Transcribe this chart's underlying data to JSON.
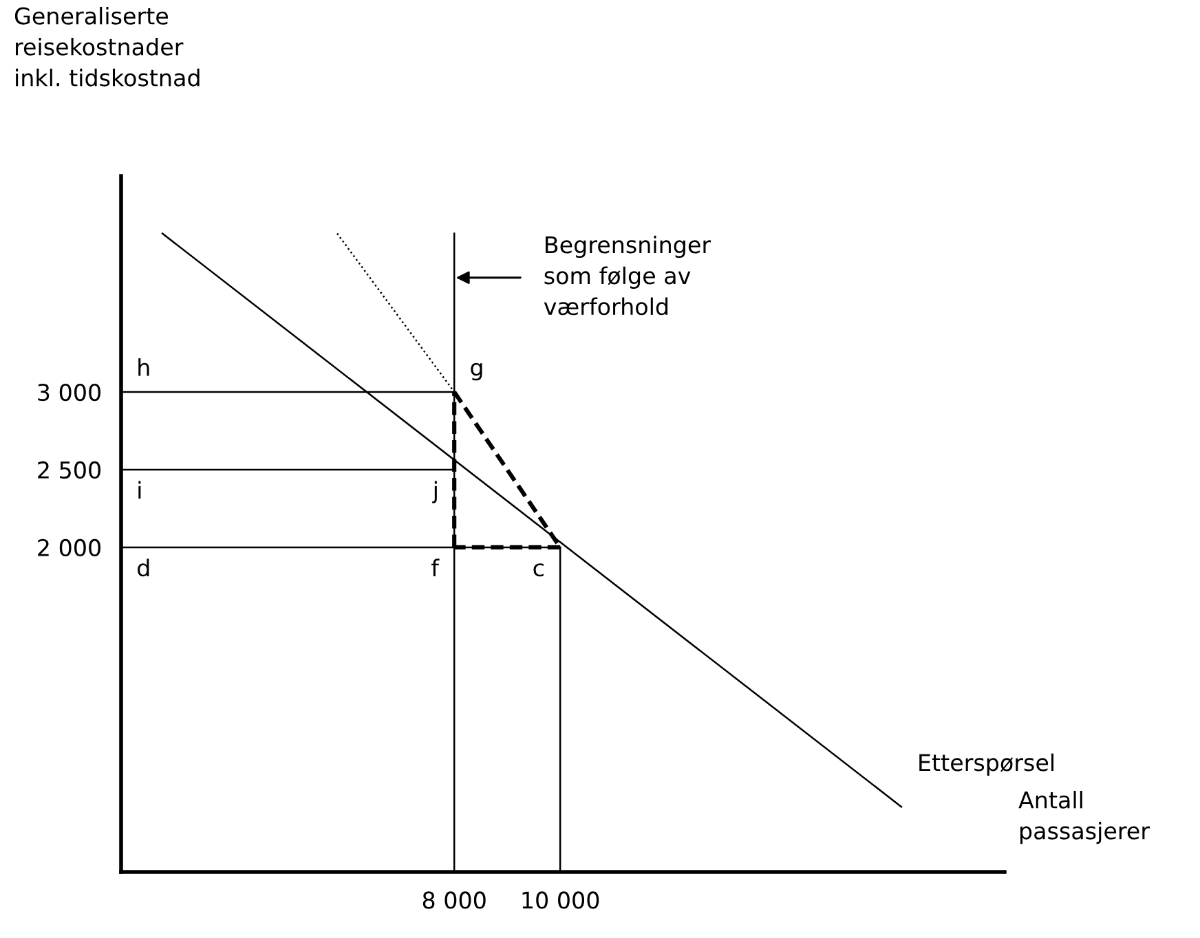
{
  "chart_data": {
    "type": "line",
    "xlabel": "Antall\npassasjerer",
    "ylabel": "Generaliserte\nreisekostnader\ninkl. tidskostnad",
    "xlim": [
      1710,
      18390
    ],
    "ylim": [
      -90,
      4390
    ],
    "xticks": [
      {
        "value": 8000,
        "label": "8 000"
      },
      {
        "value": 10000,
        "label": "10 000"
      }
    ],
    "yticks": [
      {
        "value": 2000,
        "label": "2 000"
      },
      {
        "value": 2500,
        "label": "2 500"
      },
      {
        "value": 3000,
        "label": "3 000"
      }
    ],
    "grid": false,
    "legend": false,
    "marker": "none",
    "series": [
      {
        "name": "Etterspørsel",
        "color": "#000000",
        "x": [
          2490,
          16440
        ],
        "values": [
          4020,
          330
        ],
        "line_style": "solid"
      },
      {
        "color": "#000000",
        "x": [
          5790,
          8000
        ],
        "values": [
          4020,
          3000
        ],
        "line_style": "dotted"
      },
      {
        "color": "#000000",
        "x": [
          8000,
          10000
        ],
        "values": [
          3000,
          2000
        ],
        "line_style": "dashed"
      },
      {
        "color": "#000000",
        "x": [
          10000,
          8000
        ],
        "values": [
          2000,
          2000
        ],
        "line_style": "dashed"
      },
      {
        "color": "#000000",
        "x": [
          8000,
          8000
        ],
        "values": [
          2000,
          3000
        ],
        "line_style": "dashed"
      },
      {
        "color": "#000000",
        "x": [
          1710,
          8000
        ],
        "values": [
          3000,
          3000
        ],
        "line_style": "solid"
      },
      {
        "color": "#000000",
        "x": [
          1710,
          8000
        ],
        "values": [
          2500,
          2500
        ],
        "line_style": "solid"
      },
      {
        "color": "#000000",
        "x": [
          1710,
          10000
        ],
        "values": [
          2000,
          2000
        ],
        "line_style": "solid"
      },
      {
        "color": "#000000",
        "x": [
          8000,
          8000
        ],
        "values": [
          -90,
          4020
        ],
        "line_style": "solid"
      },
      {
        "color": "#000000",
        "x": [
          10000,
          10000
        ],
        "values": [
          -90,
          2000
        ],
        "line_style": "solid"
      }
    ],
    "annotations": [
      {
        "text": "h",
        "x": 1710,
        "y": 3000
      },
      {
        "text": "g",
        "x": 8000,
        "y": 3000
      },
      {
        "text": "i",
        "x": 1710,
        "y": 2500
      },
      {
        "text": "j",
        "x": 8000,
        "y": 2500
      },
      {
        "text": "d",
        "x": 1710,
        "y": 2000
      },
      {
        "text": "f",
        "x": 8000,
        "y": 2000
      },
      {
        "text": "c",
        "x": 10000,
        "y": 2000
      },
      "Begrensninger\nsom følge av\nværforhold"
    ]
  }
}
